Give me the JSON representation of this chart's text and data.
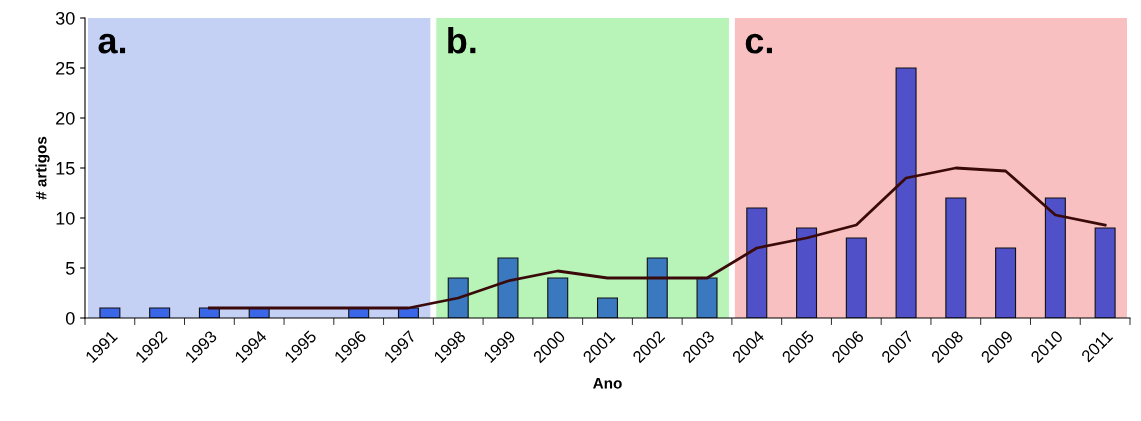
{
  "chart_data": {
    "type": "bar",
    "xlabel": "Ano",
    "ylabel": "# artigos",
    "categories": [
      "1991",
      "1992",
      "1993",
      "1994",
      "1995",
      "1996",
      "1997",
      "1998",
      "1999",
      "2000",
      "2001",
      "2002",
      "2003",
      "2004",
      "2005",
      "2006",
      "2007",
      "2008",
      "2009",
      "2010",
      "2011"
    ],
    "series": [
      {
        "values": [
          1,
          1,
          1,
          1,
          0,
          1,
          1,
          4,
          6,
          4,
          2,
          6,
          4,
          11,
          9,
          8,
          25,
          12,
          7,
          12,
          9
        ],
        "colors": [
          "#3a66e8",
          "#3a66e8",
          "#3a66e8",
          "#3a66e8",
          "#3a66e8",
          "#3a66e8",
          "#3a66e8",
          "#3a78c0",
          "#3a78c0",
          "#3a78c0",
          "#3a78c0",
          "#3a78c0",
          "#3a78c0",
          "#5050c8",
          "#5050c8",
          "#5050c8",
          "#5050c8",
          "#5050c8",
          "#5050c8",
          "#5050c8",
          "#5050c8"
        ]
      },
      {
        "type": "line",
        "color": "#3a0a0a",
        "values": [
          null,
          null,
          1,
          1,
          1,
          1,
          1,
          2,
          3.7,
          4.7,
          4,
          4,
          4,
          7,
          8,
          9.3,
          14,
          15,
          14.7,
          10.3,
          9.3
        ]
      }
    ],
    "bands": [
      {
        "axis": "x",
        "from": "1991",
        "to": "1997",
        "label": "a.",
        "color": "#c4d0f4"
      },
      {
        "axis": "x",
        "from": "1998",
        "to": "2003",
        "label": "b.",
        "color": "#b8f4b8"
      },
      {
        "axis": "x",
        "from": "2004",
        "to": "2011",
        "label": "c.",
        "color": "#f8c0c0"
      }
    ],
    "ylim": [
      0,
      30
    ],
    "yticks": [
      0,
      5,
      10,
      15,
      20,
      25,
      30
    ],
    "grid": false,
    "legend": false,
    "line_style": "solid",
    "marker": "none"
  }
}
